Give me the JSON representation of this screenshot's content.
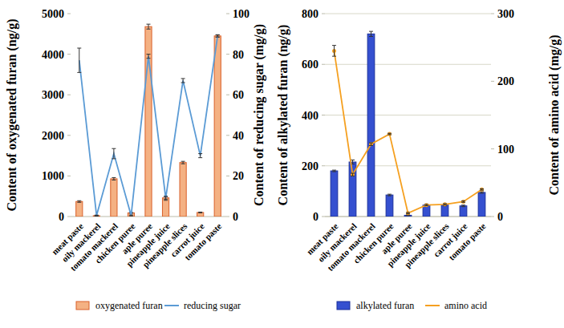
{
  "chart_data": [
    {
      "type": "bar",
      "categories": [
        "meat paste",
        "oily mackerel",
        "tomato mackerel",
        "chicken puree",
        "aple puree",
        "pineapple juice",
        "pineapple slices",
        "carrot juice",
        "tomato paste"
      ],
      "y_label": "Content of oxygenated furan (ng/g)",
      "y2_label": "Content of reducing sugar (mg/g)",
      "ylim": [
        0,
        5000
      ],
      "yticks": [
        0,
        1000,
        2000,
        3000,
        4000,
        5000
      ],
      "y2lim": [
        0,
        100
      ],
      "y2ticks": [
        0,
        20,
        40,
        60,
        80,
        100
      ],
      "grid": false,
      "legend": "bottom",
      "series": [
        {
          "name": "oxygenated furan",
          "type": "bar",
          "color": "#f4b183",
          "values": [
            370,
            20,
            930,
            90,
            4680,
            460,
            1330,
            100,
            4450
          ],
          "errors": [
            20,
            5,
            30,
            10,
            60,
            30,
            30,
            10,
            30
          ]
        },
        {
          "name": "reducing sugar",
          "type": "line",
          "axis": "y2",
          "color": "#5b9bd5",
          "values": [
            77,
            0.5,
            31,
            0.5,
            79,
            9,
            67,
            30,
            89
          ],
          "errors": [
            6,
            0.2,
            2.5,
            0.2,
            1,
            1,
            1,
            1,
            0.5
          ]
        }
      ]
    },
    {
      "type": "bar",
      "categories": [
        "meat paste",
        "oily mackerel",
        "tomato mackerel",
        "chicken puree",
        "aple puree",
        "pineapple juice",
        "pineapple slices",
        "carrot juice",
        "tomato paste"
      ],
      "y_label": "Content of alkylated furan (ng/g)",
      "y2_label": "Content of amino acid (mg/g)",
      "ylim": [
        0,
        800
      ],
      "yticks": [
        0,
        200,
        400,
        600,
        800
      ],
      "y2lim": [
        0,
        300
      ],
      "y2ticks": [
        0,
        100,
        200,
        300
      ],
      "grid": true,
      "legend": "bottom",
      "series": [
        {
          "name": "alkylated furan",
          "type": "bar",
          "color": "#3550d0",
          "values": [
            180,
            215,
            720,
            85,
            5,
            45,
            45,
            42,
            95
          ],
          "errors": [
            3,
            8,
            10,
            3,
            1,
            3,
            3,
            3,
            3
          ]
        },
        {
          "name": "amino acid",
          "type": "line",
          "axis": "y2",
          "color": "#f5a020",
          "marker": "circle",
          "values": [
            245,
            62,
            107,
            122,
            5,
            17,
            18,
            22,
            40
          ],
          "errors": [
            8,
            2,
            2,
            1,
            1,
            1,
            1,
            1,
            1
          ]
        }
      ]
    }
  ]
}
